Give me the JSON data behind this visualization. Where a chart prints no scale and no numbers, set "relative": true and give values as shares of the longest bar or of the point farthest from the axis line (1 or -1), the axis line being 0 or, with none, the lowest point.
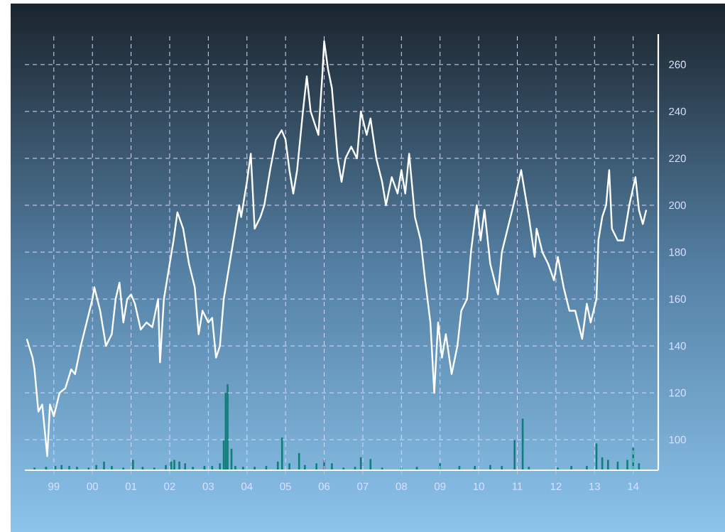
{
  "chart_data": [
    {
      "type": "line",
      "color": "#ffffff",
      "grid": true,
      "xlim": [
        1998.25,
        2014.65
      ],
      "ylim": [
        87,
        273
      ],
      "xticks": [
        {
          "value": 1999,
          "label": "99"
        },
        {
          "value": 2000,
          "label": "00"
        },
        {
          "value": 2001,
          "label": "01"
        },
        {
          "value": 2002,
          "label": "02"
        },
        {
          "value": 2003,
          "label": "03"
        },
        {
          "value": 2004,
          "label": "04"
        },
        {
          "value": 2005,
          "label": "05"
        },
        {
          "value": 2006,
          "label": "06"
        },
        {
          "value": 2007,
          "label": "07"
        },
        {
          "value": 2008,
          "label": "08"
        },
        {
          "value": 2009,
          "label": "09"
        },
        {
          "value": 2010,
          "label": "10"
        },
        {
          "value": 2011,
          "label": "11"
        },
        {
          "value": 2012,
          "label": "12"
        },
        {
          "value": 2013,
          "label": "13"
        },
        {
          "value": 2014,
          "label": "14"
        }
      ],
      "yticks": [
        100,
        120,
        140,
        160,
        180,
        200,
        220,
        240,
        260
      ],
      "x": [
        1998.3,
        1998.45,
        1998.5,
        1998.6,
        1998.7,
        1998.83,
        1998.9,
        1999.0,
        1999.15,
        1999.3,
        1999.45,
        1999.55,
        1999.7,
        1999.85,
        2000.0,
        2000.05,
        2000.2,
        2000.35,
        2000.5,
        2000.6,
        2000.7,
        2000.8,
        2000.9,
        2001.0,
        2001.1,
        2001.25,
        2001.4,
        2001.55,
        2001.7,
        2001.75,
        2001.85,
        2002.0,
        2002.1,
        2002.2,
        2002.35,
        2002.5,
        2002.65,
        2002.75,
        2002.85,
        2003.0,
        2003.1,
        2003.2,
        2003.3,
        2003.4,
        2003.55,
        2003.7,
        2003.8,
        2003.85,
        2004.0,
        2004.1,
        2004.2,
        2004.35,
        2004.45,
        2004.6,
        2004.75,
        2004.9,
        2005.0,
        2005.1,
        2005.2,
        2005.3,
        2005.45,
        2005.55,
        2005.65,
        2005.75,
        2005.85,
        2005.95,
        2006.0,
        2006.1,
        2006.2,
        2006.35,
        2006.45,
        2006.55,
        2006.7,
        2006.85,
        2006.95,
        2007.1,
        2007.2,
        2007.35,
        2007.5,
        2007.6,
        2007.75,
        2007.9,
        2008.0,
        2008.1,
        2008.2,
        2008.35,
        2008.5,
        2008.6,
        2008.75,
        2008.85,
        2008.95,
        2009.05,
        2009.15,
        2009.3,
        2009.45,
        2009.55,
        2009.7,
        2009.8,
        2009.95,
        2010.05,
        2010.15,
        2010.3,
        2010.5,
        2010.6,
        2010.75,
        2010.9,
        2011.1,
        2011.2,
        2011.3,
        2011.45,
        2011.5,
        2011.65,
        2011.8,
        2011.95,
        2012.05,
        2012.2,
        2012.35,
        2012.5,
        2012.68,
        2012.8,
        2012.9,
        2013.05,
        2013.1,
        2013.2,
        2013.3,
        2013.38,
        2013.45,
        2013.6,
        2013.75,
        2013.9,
        2014.06,
        2014.15,
        2014.25,
        2014.34
      ],
      "values": [
        143,
        135,
        130,
        112,
        115,
        93,
        115,
        110,
        120,
        122,
        130,
        128,
        140,
        150,
        160,
        165,
        155,
        140,
        145,
        160,
        167,
        150,
        160,
        162,
        158,
        147,
        150,
        148,
        160,
        133,
        160,
        175,
        185,
        197,
        190,
        175,
        165,
        145,
        155,
        150,
        152,
        135,
        140,
        160,
        175,
        190,
        200,
        195,
        210,
        222,
        190,
        195,
        200,
        215,
        228,
        232,
        228,
        215,
        205,
        215,
        240,
        255,
        240,
        235,
        230,
        255,
        270,
        258,
        250,
        220,
        210,
        220,
        225,
        220,
        240,
        230,
        237,
        220,
        210,
        200,
        212,
        205,
        215,
        205,
        222,
        195,
        185,
        170,
        150,
        120,
        150,
        135,
        145,
        128,
        140,
        155,
        160,
        180,
        200,
        185,
        198,
        175,
        162,
        180,
        190,
        200,
        215,
        205,
        195,
        178,
        190,
        180,
        175,
        168,
        178,
        165,
        155,
        155,
        143,
        158,
        150,
        160,
        185,
        195,
        200,
        215,
        190,
        185,
        185,
        200,
        212,
        198,
        192,
        198
      ]
    },
    {
      "type": "bar",
      "color": "#0f7d78",
      "relative": true,
      "xlim": [
        1998.25,
        2014.65
      ],
      "x": [
        1998.5,
        1998.8,
        1999.04,
        1999.2,
        1999.4,
        1999.6,
        1999.9,
        2000.1,
        2000.3,
        2000.5,
        2000.8,
        2001.05,
        2001.3,
        2001.6,
        2001.9,
        2002.04,
        2002.12,
        2002.25,
        2002.4,
        2002.6,
        2002.9,
        2003.1,
        2003.3,
        2003.4,
        2003.45,
        2003.5,
        2003.6,
        2003.7,
        2003.9,
        2004.2,
        2004.5,
        2004.8,
        2004.91,
        2005.1,
        2005.35,
        2005.5,
        2005.8,
        2006.0,
        2006.2,
        2006.5,
        2006.8,
        2006.95,
        2007.2,
        2007.5,
        2008.0,
        2008.4,
        2009.0,
        2009.5,
        2009.9,
        2010.3,
        2010.6,
        2010.93,
        2011.14,
        2011.3,
        2012.05,
        2012.4,
        2012.8,
        2013.05,
        2013.2,
        2013.35,
        2013.6,
        2013.85,
        2014.0,
        2014.15
      ],
      "values": [
        0.03,
        0.04,
        0.05,
        0.06,
        0.05,
        0.04,
        0.03,
        0.06,
        0.1,
        0.05,
        0.03,
        0.12,
        0.04,
        0.03,
        0.06,
        0.1,
        0.12,
        0.1,
        0.08,
        0.04,
        0.05,
        0.05,
        0.08,
        0.35,
        0.9,
        1,
        0.25,
        0.05,
        0.04,
        0.04,
        0.05,
        0.1,
        0.38,
        0.08,
        0.2,
        0.06,
        0.08,
        0.12,
        0.08,
        0.03,
        0.04,
        0.15,
        0.13,
        0.03,
        0.03,
        0.04,
        0.08,
        0.05,
        0.05,
        0.06,
        0.05,
        0.35,
        0.6,
        0.04,
        0.03,
        0.05,
        0.05,
        0.31,
        0.15,
        0.12,
        0.1,
        0.12,
        0.26,
        0.08
      ]
    }
  ]
}
